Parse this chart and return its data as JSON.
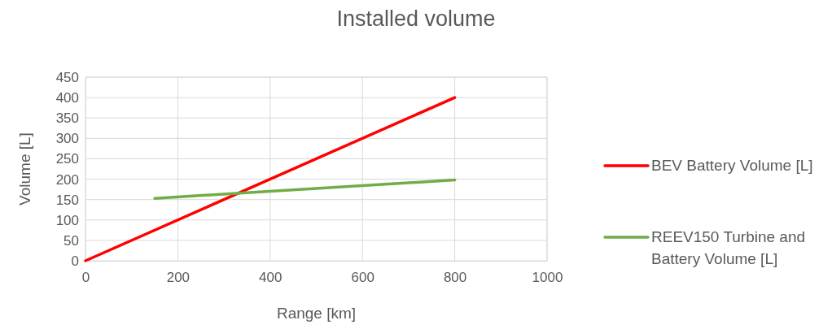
{
  "chart_data": {
    "type": "line",
    "title": "Installed volume",
    "xlabel": "Range [km]",
    "ylabel": "Volume [L]",
    "series": [
      {
        "name": "BEV Battery Volume [L]",
        "color": "#ff0000",
        "x": [
          0,
          800
        ],
        "values": [
          0,
          400
        ]
      },
      {
        "name": "REEV150 Turbine and Battery Volume [L]",
        "color": "#70ad47",
        "x": [
          150,
          800
        ],
        "values": [
          153,
          198
        ]
      }
    ],
    "xlim": [
      0,
      1000
    ],
    "xticks": [
      0,
      200,
      400,
      600,
      800,
      1000
    ],
    "ylim": [
      0,
      450
    ],
    "yticks": [
      0,
      50,
      100,
      150,
      200,
      250,
      300,
      350,
      400,
      450
    ],
    "grid": true,
    "legend": "right",
    "marker": "none",
    "line_style": "solid"
  }
}
